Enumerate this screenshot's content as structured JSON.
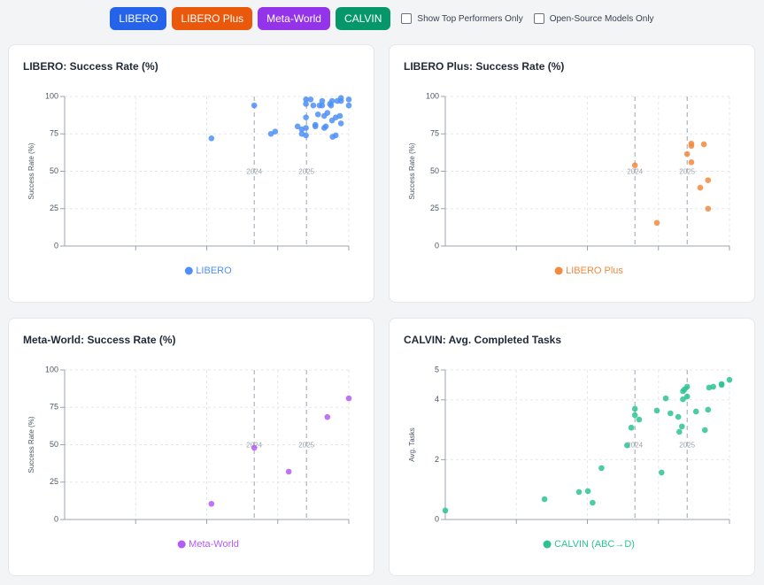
{
  "controls": {
    "buttons": [
      {
        "label": "LIBERO",
        "color": "#2563eb"
      },
      {
        "label": "LIBERO Plus",
        "color": "#ea580c"
      },
      {
        "label": "Meta-World",
        "color": "#9333ea"
      },
      {
        "label": "CALVIN",
        "color": "#059669"
      }
    ],
    "checkboxes": [
      "Show Top Performers Only",
      "Open-Source Models Only"
    ]
  },
  "chart_data": [
    {
      "type": "scatter",
      "title": "LIBERO: Success Rate (%)",
      "y_label": "Success Rate (%)",
      "x": [
        2023.18,
        2024.0,
        2024.32,
        2024.4,
        2024.83,
        2024.91,
        2024.91,
        2024.99,
        2024.99,
        2024.99,
        2024.99,
        2024.99,
        2025.08,
        2025.13,
        2025.17,
        2025.17,
        2025.22,
        2025.3,
        2025.3,
        2025.34,
        2025.37,
        2025.4,
        2025.45,
        2025.49,
        2025.49,
        2025.5,
        2025.56,
        2025.56,
        2025.59,
        2025.64,
        2025.66,
        2025.66,
        2025.66,
        2025.81,
        2025.81,
        2025.47,
        2025.25,
        2025.34
      ],
      "series": [
        {
          "name": "LIBERO",
          "color": "#4f8ff7",
          "values": [
            72,
            94,
            75,
            76.5,
            80,
            78,
            75,
            74,
            79,
            86,
            95,
            98,
            98,
            94,
            81,
            80,
            88,
            97,
            94,
            87,
            80,
            89,
            95,
            97,
            84,
            73,
            74,
            86,
            97,
            87,
            82,
            99,
            97,
            98,
            94,
            94,
            94,
            79
          ]
        }
      ],
      "xlim": [
        2020.37,
        2025.81
      ],
      "ylim": [
        0,
        100
      ],
      "yticks": [
        0,
        25,
        50,
        75,
        100
      ],
      "grid": true,
      "annotations": [
        {
          "label": "2024",
          "x": 2024
        },
        {
          "label": "2025",
          "x": 2025
        }
      ]
    },
    {
      "type": "scatter",
      "title": "LIBERO Plus: Success Rate (%)",
      "y_label": "Success Rate (%)",
      "x": [
        2024.0,
        2024.42,
        2025.0,
        2025.08,
        2025.08,
        2025.08,
        2025.25,
        2025.32,
        2025.4,
        2025.4
      ],
      "series": [
        {
          "name": "LIBERO Plus",
          "color": "#f28a3e",
          "values": [
            54,
            15.5,
            61.5,
            68.5,
            67,
            56,
            39,
            68,
            44,
            25
          ]
        }
      ],
      "xlim": [
        2020.37,
        2025.81
      ],
      "ylim": [
        0,
        100
      ],
      "yticks": [
        0,
        25,
        50,
        75,
        100
      ],
      "grid": true,
      "annotations": [
        {
          "label": "2024",
          "x": 2024
        },
        {
          "label": "2025",
          "x": 2025
        }
      ]
    },
    {
      "type": "scatter",
      "title": "Meta-World: Success Rate (%)",
      "y_label": "Success Rate (%)",
      "x": [
        2023.18,
        2024.0,
        2024.66,
        2025.4,
        2025.81
      ],
      "series": [
        {
          "name": "Meta-World",
          "color": "#b15cf5",
          "values": [
            10.5,
            48,
            32,
            68.5,
            81
          ]
        }
      ],
      "xlim": [
        2020.37,
        2025.81
      ],
      "ylim": [
        0,
        100
      ],
      "yticks": [
        0,
        25,
        50,
        75,
        100
      ],
      "grid": true,
      "annotations": [
        {
          "label": "2024",
          "x": 2024
        },
        {
          "label": "2025",
          "x": 2025
        }
      ]
    },
    {
      "type": "scatter",
      "title": "CALVIN: Avg. Completed Tasks",
      "y_label": "Avg. Tasks",
      "x": [
        2020.37,
        2022.27,
        2022.93,
        2023.1,
        2023.19,
        2023.36,
        2023.85,
        2023.93,
        2024.0,
        2024.0,
        2024.08,
        2024.42,
        2024.51,
        2024.59,
        2024.68,
        2024.83,
        2024.85,
        2024.9,
        2024.92,
        2024.92,
        2024.95,
        2025.0,
        2025.0,
        2025.17,
        2025.34,
        2025.4,
        2025.42,
        2025.5,
        2025.66,
        2025.66,
        2025.81
      ],
      "series": [
        {
          "name": "CALVIN (ABC→D)",
          "color": "#2cc391",
          "values": [
            0.3,
            0.68,
            0.92,
            0.95,
            0.56,
            1.72,
            2.48,
            3.07,
            3.7,
            3.49,
            3.34,
            3.64,
            1.57,
            4.05,
            3.55,
            3.43,
            2.93,
            3.11,
            4.02,
            4.29,
            4.35,
            4.44,
            4.11,
            3.61,
            2.99,
            3.67,
            4.41,
            4.44,
            4.53,
            4.5,
            4.67
          ]
        }
      ],
      "xlim": [
        2020.37,
        2025.81
      ],
      "ylim": [
        0,
        5
      ],
      "yticks": [
        0,
        2,
        4,
        5
      ],
      "grid": true,
      "annotations": [
        {
          "label": "2024",
          "x": 2024
        },
        {
          "label": "2025",
          "x": 2025
        }
      ]
    }
  ]
}
